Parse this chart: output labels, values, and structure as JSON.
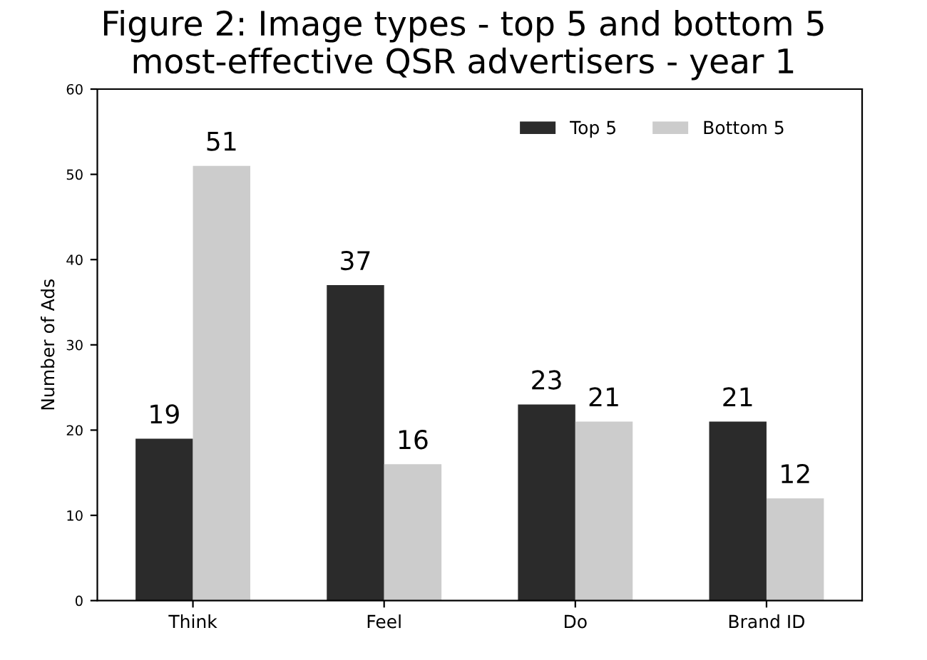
{
  "chart_data": {
    "type": "bar",
    "title": "Figure 2: Image types - top 5 and bottom 5\nmost-effective QSR advertisers - year 1",
    "ylabel": "Number of Ads",
    "categories": [
      "Think",
      "Feel",
      "Do",
      "Brand ID"
    ],
    "series": [
      {
        "name": "Top 5",
        "color": "#2b2b2b",
        "values": [
          19,
          37,
          23,
          21
        ]
      },
      {
        "name": "Bottom 5",
        "color": "#cccccc",
        "values": [
          51,
          16,
          21,
          12
        ]
      }
    ],
    "ylim": [
      0,
      60
    ],
    "yticks": [
      0,
      10,
      20,
      30,
      40,
      50,
      60
    ],
    "grid": false,
    "legend": "top right",
    "data_labels": true
  }
}
